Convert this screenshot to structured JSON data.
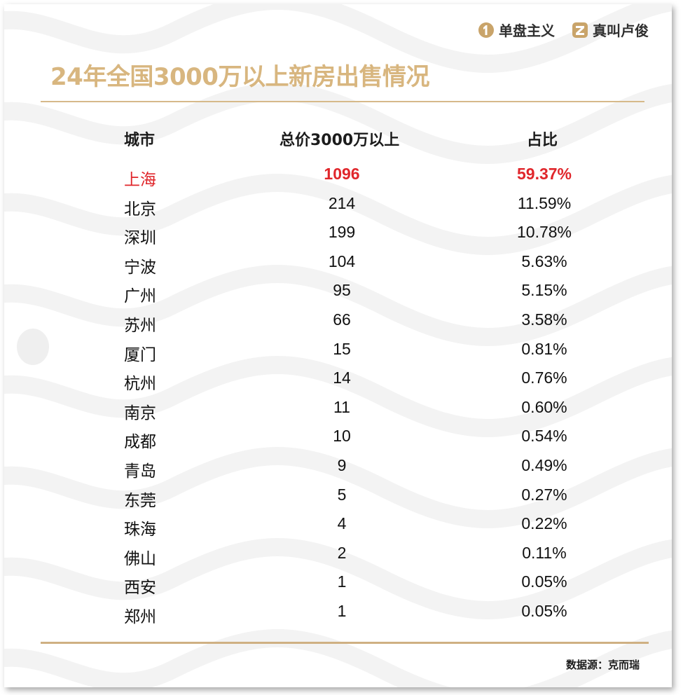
{
  "brands": {
    "first": {
      "label": "单盘主义",
      "icon": "number-one-icon"
    },
    "second": {
      "label": "真叫卢俊",
      "icon": "z-logo-icon"
    }
  },
  "title": "24年全国3000万以上新房出售情况",
  "columns": {
    "city": "城市",
    "total": "总价3000万以上",
    "share": "占比"
  },
  "rows": [
    {
      "city": "上海",
      "total": "1096",
      "share": "59.37%"
    },
    {
      "city": "北京",
      "total": "214",
      "share": "11.59%"
    },
    {
      "city": "深圳",
      "total": "199",
      "share": "10.78%"
    },
    {
      "city": "宁波",
      "total": "104",
      "share": "5.63%"
    },
    {
      "city": "广州",
      "total": "95",
      "share": "5.15%"
    },
    {
      "city": "苏州",
      "total": "66",
      "share": "3.58%"
    },
    {
      "city": "厦门",
      "total": "15",
      "share": "0.81%"
    },
    {
      "city": "杭州",
      "total": "14",
      "share": "0.76%"
    },
    {
      "city": "南京",
      "total": "11",
      "share": "0.60%"
    },
    {
      "city": "成都",
      "total": "10",
      "share": "0.54%"
    },
    {
      "city": "青岛",
      "total": "9",
      "share": "0.49%"
    },
    {
      "city": "东莞",
      "total": "5",
      "share": "0.27%"
    },
    {
      "city": "珠海",
      "total": "4",
      "share": "0.22%"
    },
    {
      "city": "佛山",
      "total": "2",
      "share": "0.11%"
    },
    {
      "city": "西安",
      "total": "1",
      "share": "0.05%"
    },
    {
      "city": "郑州",
      "total": "1",
      "share": "0.05%"
    }
  ],
  "highlight_row": 0,
  "source": "数据源：克而瑞",
  "colors": {
    "title_gold": "#d8b67f",
    "rule_gold": "#cfb083",
    "highlight_red": "#e0262b",
    "text_dark": "#111111"
  }
}
